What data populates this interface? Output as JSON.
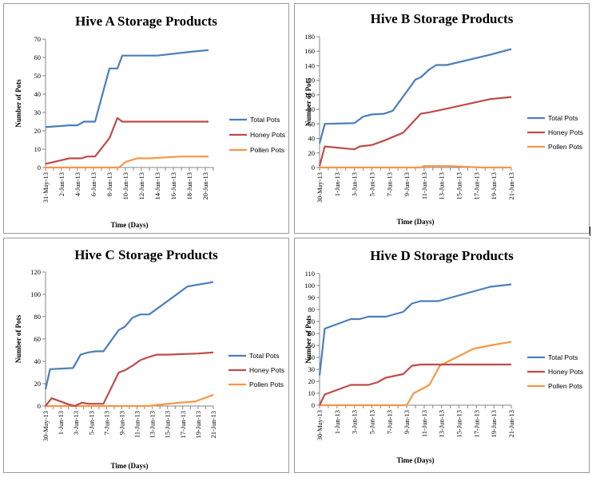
{
  "colors": {
    "total": "#4a7ebb",
    "honey": "#be4b48",
    "pollen": "#f79646",
    "axis": "#868686"
  },
  "chart_data": [
    {
      "type": "line",
      "title": "Hive A Storage Products",
      "xlabel": "Time (Days)",
      "ylabel": "Number of Pots",
      "ylim": [
        0,
        70
      ],
      "yticks": [
        0,
        10,
        20,
        30,
        40,
        50,
        60,
        70
      ],
      "x_range": [
        0,
        21
      ],
      "x_tick_labels": [
        {
          "x": 0,
          "label": "31-May-13"
        },
        {
          "x": 2,
          "label": "2-Jun-13"
        },
        {
          "x": 4,
          "label": "4-Jun-13"
        },
        {
          "x": 6,
          "label": "6-Jun-13"
        },
        {
          "x": 8,
          "label": "8-Jun-13"
        },
        {
          "x": 10,
          "label": "10-Jun-13"
        },
        {
          "x": 12,
          "label": "12-Jun-13"
        },
        {
          "x": 14,
          "label": "14-Jun-13"
        },
        {
          "x": 16,
          "label": "16-Jun-13"
        },
        {
          "x": 18,
          "label": "18-Jun-13"
        },
        {
          "x": 20,
          "label": "20-Jun-13"
        }
      ],
      "series": [
        {
          "name": "Total Pots",
          "key": "total",
          "x": [
            0,
            3,
            4,
            4.8,
            6.2,
            8,
            9,
            9.6,
            11,
            14,
            18,
            20.4
          ],
          "y": [
            22,
            23,
            23,
            25,
            25,
            54,
            54,
            61,
            61,
            61,
            63,
            64
          ]
        },
        {
          "name": "Honey Pots",
          "key": "honey",
          "x": [
            0,
            3,
            4.5,
            5.2,
            6.2,
            8,
            9,
            9.6,
            12,
            20.4
          ],
          "y": [
            2,
            5,
            5,
            6,
            6,
            16,
            27,
            25,
            25,
            25
          ]
        },
        {
          "name": "Pollen Pots",
          "key": "pollen",
          "x": [
            0,
            8,
            9.2,
            10,
            11.5,
            13,
            15,
            17,
            20.4
          ],
          "y": [
            0,
            0,
            0,
            3,
            5,
            5,
            5.5,
            6,
            6
          ]
        }
      ]
    },
    {
      "type": "line",
      "title": "Hive B Storage Products",
      "xlabel": "Time (Days)",
      "ylabel": "Number of Pots",
      "ylim": [
        0,
        180
      ],
      "yticks": [
        0,
        20,
        40,
        60,
        80,
        100,
        120,
        140,
        160,
        180
      ],
      "x_range": [
        0,
        22
      ],
      "x_tick_labels": [
        {
          "x": 0,
          "label": "30-May-13"
        },
        {
          "x": 2,
          "label": "1-Jun-13"
        },
        {
          "x": 4,
          "label": "3-Jun-13"
        },
        {
          "x": 6,
          "label": "5-Jun-13"
        },
        {
          "x": 8,
          "label": "7-Jun-13"
        },
        {
          "x": 10,
          "label": "9-Jun-13"
        },
        {
          "x": 12,
          "label": "11-Jun-13"
        },
        {
          "x": 14,
          "label": "13-Jun-13"
        },
        {
          "x": 16,
          "label": "15-Jun-13"
        },
        {
          "x": 18,
          "label": "17-Jun-13"
        },
        {
          "x": 20,
          "label": "19-Jun-13"
        },
        {
          "x": 22,
          "label": "21-Jun-13"
        }
      ],
      "series": [
        {
          "name": "Total Pots",
          "key": "total",
          "x": [
            0,
            0.6,
            4,
            5,
            6,
            7.4,
            8.4,
            11,
            11.6,
            12.6,
            13.4,
            14.6,
            19.5,
            22
          ],
          "y": [
            33,
            60,
            61,
            70,
            73,
            74,
            78,
            121,
            124,
            135,
            141,
            141,
            155,
            163
          ]
        },
        {
          "name": "Honey Pots",
          "key": "honey",
          "x": [
            0,
            0.6,
            4,
            4.6,
            6,
            7.4,
            9.6,
            11.6,
            12.6,
            14.6,
            19.5,
            22
          ],
          "y": [
            2,
            29,
            25,
            29,
            31,
            37,
            48,
            74,
            76,
            81,
            94,
            97
          ]
        },
        {
          "name": "Pollen Pots",
          "key": "pollen",
          "x": [
            0,
            11.6,
            12,
            15,
            18.6,
            22
          ],
          "y": [
            0,
            0,
            2,
            2,
            0,
            0
          ]
        }
      ]
    },
    {
      "type": "line",
      "title": "Hive C Storage Products",
      "xlabel": "Time (Days)",
      "ylabel": "Number of Pots",
      "ylim": [
        0,
        120
      ],
      "yticks": [
        0,
        20,
        40,
        60,
        80,
        100,
        120
      ],
      "x_range": [
        0,
        22
      ],
      "x_tick_labels": [
        {
          "x": 0,
          "label": "30-May-13"
        },
        {
          "x": 2,
          "label": "1-Jun-13"
        },
        {
          "x": 4,
          "label": "3-Jun-13"
        },
        {
          "x": 6,
          "label": "5-Jun-13"
        },
        {
          "x": 8,
          "label": "7-Jun-13"
        },
        {
          "x": 10,
          "label": "9-Jun-13"
        },
        {
          "x": 12,
          "label": "11-Jun-13"
        },
        {
          "x": 14,
          "label": "13-Jun-13"
        },
        {
          "x": 16,
          "label": "15-Jun-13"
        },
        {
          "x": 18,
          "label": "17-Jun-13"
        },
        {
          "x": 20,
          "label": "19-Jun-13"
        },
        {
          "x": 22,
          "label": "21-Jun-13"
        }
      ],
      "series": [
        {
          "name": "Total Pots",
          "key": "total",
          "x": [
            0,
            0.6,
            3.6,
            4.6,
            5.6,
            6.6,
            7.6,
            9.6,
            10.4,
            11.4,
            12.4,
            13.6,
            14.6,
            17.6,
            18.6,
            22
          ],
          "y": [
            15,
            33,
            34,
            46,
            48,
            49,
            49,
            68,
            71,
            79,
            82,
            82,
            87,
            102,
            107,
            111
          ]
        },
        {
          "name": "Honey Pots",
          "key": "honey",
          "x": [
            0,
            0.8,
            2.8,
            3.8,
            4.8,
            5.6,
            7.6,
            9.6,
            10.4,
            11.4,
            12.4,
            13.6,
            14.6,
            16,
            20,
            22
          ],
          "y": [
            0,
            7,
            2,
            0,
            3,
            2,
            2,
            30,
            32,
            36,
            41,
            44,
            46,
            46,
            47,
            48
          ]
        },
        {
          "name": "Pollen Pots",
          "key": "pollen",
          "x": [
            0,
            13.6,
            14.6,
            17.6,
            19.6,
            22
          ],
          "y": [
            0,
            0,
            1,
            3,
            4,
            10
          ]
        }
      ]
    },
    {
      "type": "line",
      "title": "Hive D Storage Products",
      "xlabel": "Time (Days)",
      "ylabel": "Number of Pots",
      "ylim": [
        0,
        110
      ],
      "yticks": [
        0,
        10,
        20,
        30,
        40,
        50,
        60,
        70,
        80,
        90,
        100,
        110
      ],
      "x_range": [
        0,
        22
      ],
      "x_tick_labels": [
        {
          "x": 0,
          "label": "30-May-13"
        },
        {
          "x": 2,
          "label": "1-Jun-13"
        },
        {
          "x": 4,
          "label": "3-Jun-13"
        },
        {
          "x": 6,
          "label": "5-Jun-13"
        },
        {
          "x": 8,
          "label": "7-Jun-13"
        },
        {
          "x": 10,
          "label": "9-Jun-13"
        },
        {
          "x": 12,
          "label": "11-Jun-13"
        },
        {
          "x": 14,
          "label": "13-Jun-13"
        },
        {
          "x": 16,
          "label": "15-Jun-13"
        },
        {
          "x": 18,
          "label": "17-Jun-13"
        },
        {
          "x": 20,
          "label": "19-Jun-13"
        },
        {
          "x": 22,
          "label": "21-Jun-13"
        }
      ],
      "series": [
        {
          "name": "Total Pots",
          "key": "total",
          "x": [
            0,
            0.6,
            3.6,
            4.6,
            5.6,
            7.6,
            9.6,
            10.6,
            11.6,
            13.6,
            14.6,
            19.6,
            22
          ],
          "y": [
            25,
            64,
            72,
            72,
            74,
            74,
            78,
            85,
            87,
            87,
            89,
            99,
            101
          ]
        },
        {
          "name": "Honey Pots",
          "key": "honey",
          "x": [
            0,
            0.6,
            3.6,
            5.6,
            6.6,
            7.6,
            9.6,
            10.6,
            11.6,
            12.6,
            14.6,
            22
          ],
          "y": [
            0,
            9,
            17,
            17,
            19,
            23,
            26,
            33,
            34,
            34,
            34,
            34
          ]
        },
        {
          "name": "Pollen Pots",
          "key": "pollen",
          "x": [
            0,
            10,
            10.8,
            11.6,
            12.6,
            13.8,
            14.6,
            17.6,
            19.6,
            22
          ],
          "y": [
            0,
            0,
            10,
            13,
            17,
            33,
            36,
            47,
            50,
            53
          ]
        }
      ]
    }
  ]
}
